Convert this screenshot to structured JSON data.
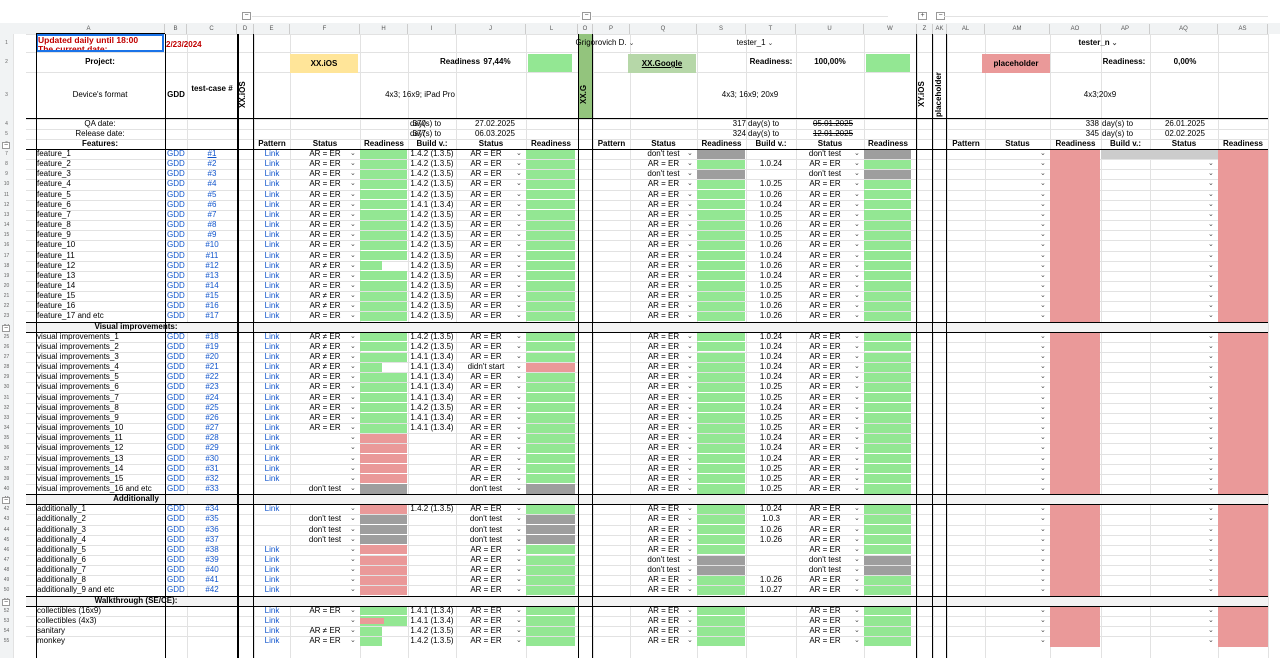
{
  "columns": [
    "A",
    "B",
    "C",
    "D",
    "E",
    "F",
    "H",
    "I",
    "J",
    "L",
    "O",
    "P",
    "Q",
    "S",
    "T",
    "U",
    "W",
    "Z",
    "AK",
    "AL",
    "AM",
    "AO",
    "AP",
    "AQ",
    "AS"
  ],
  "collapse_markers": [
    "−",
    "−",
    "+",
    "−"
  ],
  "header": {
    "updated": "Updated daily until 18:00",
    "current_date_label": "The current date:",
    "current_date": "2/23/2024",
    "project_label": "Project:",
    "device_format_label": "Device's format",
    "gdd": "GDD",
    "test_case": "test-case #",
    "qa_date_label": "QA date:",
    "release_date_label": "Release date:",
    "features_label": "Features:"
  },
  "projects": [
    {
      "tester": "Grigorovich D.",
      "name": "XX.iOS",
      "readiness_label": "Readiness:",
      "readiness": "97,44%",
      "formats": "4x3; 16x9; iPad Pro",
      "vertical": "XX.iOS",
      "qa_days": "370",
      "release_days": "377",
      "days_to": "day(s) to",
      "qa_date": "27.02.2025",
      "release_date": "06.03.2025",
      "col_headers": [
        "Pattern",
        "Status",
        "Readiness",
        "Build v.:",
        "Status",
        "Readiness"
      ],
      "name_color": "#ffe599"
    },
    {
      "tester": "tester_1",
      "name": "XX.Google",
      "readiness_label": "Readiness:",
      "readiness": "100,00%",
      "formats": "4x3; 16x9; 20x9",
      "vertical": "XX.G",
      "qa_days": "317",
      "release_days": "324",
      "days_to": "day(s) to",
      "qa_date": "05.01.2025",
      "release_date": "12.01.2025",
      "col_headers": [
        "Pattern",
        "Status",
        "Readiness",
        "Build v.:",
        "Status",
        "Readiness"
      ],
      "name_color": "#b6d7a8"
    },
    {
      "tester": "tester_n",
      "name": "placeholder",
      "readiness_label": "Readiness:",
      "readiness": "0,00%",
      "formats": "4x3;20x9",
      "vertical": "XY.iOS",
      "vertical2": "placeholder",
      "qa_days": "338",
      "release_days": "345",
      "days_to": "day(s) to",
      "qa_date": "26.01.2025",
      "release_date": "02.02.2025",
      "col_headers": [
        "Pattern",
        "Status",
        "Readiness",
        "Build v.:",
        "Status",
        "Readiness"
      ],
      "name_color": "#ea9999"
    }
  ],
  "sections": {
    "visual": "Visual improvements:",
    "additionally": "Additionally",
    "walkthrough": "Walkthrough (SE/CE):"
  },
  "rows": [
    {
      "n": 7,
      "name": "feature_1",
      "gdd": "GDD",
      "tc": "#1",
      "a": [
        "Link",
        "AR = ER",
        "g",
        "1.4.2 (1.3.5)",
        "AR = ER",
        "g"
      ],
      "b": [
        "",
        "don't test",
        "x",
        "",
        "don't test",
        "x"
      ]
    },
    {
      "n": 8,
      "name": "feature_2",
      "gdd": "GDD",
      "tc": "#2",
      "a": [
        "Link",
        "AR = ER",
        "g",
        "1.4.2 (1.3.5)",
        "AR = ER",
        "g"
      ],
      "b": [
        "",
        "AR = ER",
        "g",
        "1.0.24",
        "AR = ER",
        "g"
      ]
    },
    {
      "n": 9,
      "name": "feature_3",
      "gdd": "GDD",
      "tc": "#3",
      "a": [
        "Link",
        "AR = ER",
        "g",
        "1.4.2 (1.3.5)",
        "AR = ER",
        "g"
      ],
      "b": [
        "",
        "don't test",
        "x",
        "",
        "don't test",
        "x"
      ]
    },
    {
      "n": 10,
      "name": "feature_4",
      "gdd": "GDD",
      "tc": "#4",
      "a": [
        "Link",
        "AR = ER",
        "g",
        "1.4.2 (1.3.5)",
        "AR = ER",
        "g"
      ],
      "b": [
        "",
        "AR = ER",
        "g",
        "1.0.25",
        "AR = ER",
        "g"
      ]
    },
    {
      "n": 11,
      "name": "feature_5",
      "gdd": "GDD",
      "tc": "#5",
      "a": [
        "Link",
        "AR = ER",
        "g",
        "1.4.2 (1.3.5)",
        "AR = ER",
        "g"
      ],
      "b": [
        "",
        "AR = ER",
        "g",
        "1.0.26",
        "AR = ER",
        "g"
      ]
    },
    {
      "n": 12,
      "name": "feature_6",
      "gdd": "GDD",
      "tc": "#6",
      "a": [
        "Link",
        "AR = ER",
        "g",
        "1.4.1 (1.3.4)",
        "AR = ER",
        "g"
      ],
      "b": [
        "",
        "AR = ER",
        "g",
        "1.0.24",
        "AR = ER",
        "g"
      ]
    },
    {
      "n": 13,
      "name": "feature_7",
      "gdd": "GDD",
      "tc": "#7",
      "a": [
        "Link",
        "AR = ER",
        "g",
        "1.4.2 (1.3.5)",
        "AR = ER",
        "g"
      ],
      "b": [
        "",
        "AR = ER",
        "g",
        "1.0.25",
        "AR = ER",
        "g"
      ]
    },
    {
      "n": 14,
      "name": "feature_8",
      "gdd": "GDD",
      "tc": "#8",
      "a": [
        "Link",
        "AR = ER",
        "g",
        "1.4.2 (1.3.5)",
        "AR = ER",
        "g"
      ],
      "b": [
        "",
        "AR = ER",
        "g",
        "1.0.26",
        "AR = ER",
        "g"
      ]
    },
    {
      "n": 15,
      "name": "feature_9",
      "gdd": "GDD",
      "tc": "#9",
      "a": [
        "Link",
        "AR = ER",
        "g",
        "1.4.2 (1.3.5)",
        "AR = ER",
        "g"
      ],
      "b": [
        "",
        "AR = ER",
        "g",
        "1.0.25",
        "AR = ER",
        "g"
      ]
    },
    {
      "n": 16,
      "name": "feature_10",
      "gdd": "GDD",
      "tc": "#10",
      "a": [
        "Link",
        "AR = ER",
        "g",
        "1.4.2 (1.3.5)",
        "AR = ER",
        "g"
      ],
      "b": [
        "",
        "AR = ER",
        "g",
        "1.0.26",
        "AR = ER",
        "g"
      ]
    },
    {
      "n": 17,
      "name": "feature_11",
      "gdd": "GDD",
      "tc": "#11",
      "a": [
        "Link",
        "AR = ER",
        "g",
        "1.4.2 (1.3.5)",
        "AR = ER",
        "g"
      ],
      "b": [
        "",
        "AR = ER",
        "g",
        "1.0.24",
        "AR = ER",
        "g"
      ]
    },
    {
      "n": 18,
      "name": "feature_12",
      "gdd": "GDD",
      "tc": "#12",
      "a": [
        "Link",
        "AR ≠ ER",
        "gw",
        "1.4.2 (1.3.5)",
        "AR = ER",
        "g"
      ],
      "b": [
        "",
        "AR = ER",
        "g",
        "1.0.26",
        "AR = ER",
        "g"
      ]
    },
    {
      "n": 19,
      "name": "feature_13",
      "gdd": "GDD",
      "tc": "#13",
      "a": [
        "Link",
        "AR = ER",
        "g",
        "1.4.2 (1.3.5)",
        "AR = ER",
        "g"
      ],
      "b": [
        "",
        "AR = ER",
        "g",
        "1.0.24",
        "AR = ER",
        "g"
      ]
    },
    {
      "n": 20,
      "name": "feature_14",
      "gdd": "GDD",
      "tc": "#14",
      "a": [
        "Link",
        "AR = ER",
        "g",
        "1.4.2 (1.3.5)",
        "AR = ER",
        "g"
      ],
      "b": [
        "",
        "AR = ER",
        "g",
        "1.0.25",
        "AR = ER",
        "g"
      ]
    },
    {
      "n": 21,
      "name": "feature_15",
      "gdd": "GDD",
      "tc": "#15",
      "a": [
        "Link",
        "AR ≠ ER",
        "g",
        "1.4.2 (1.3.5)",
        "AR = ER",
        "g"
      ],
      "b": [
        "",
        "AR = ER",
        "g",
        "1.0.25",
        "AR = ER",
        "g"
      ]
    },
    {
      "n": 22,
      "name": "feature_16",
      "gdd": "GDD",
      "tc": "#16",
      "a": [
        "Link",
        "AR ≠ ER",
        "g",
        "1.4.2 (1.3.5)",
        "AR = ER",
        "g"
      ],
      "b": [
        "",
        "AR = ER",
        "g",
        "1.0.26",
        "AR = ER",
        "g"
      ]
    },
    {
      "n": 23,
      "name": "feature_17 and etc",
      "gdd": "GDD",
      "tc": "#17",
      "a": [
        "Link",
        "AR = ER",
        "g",
        "1.4.2 (1.3.5)",
        "AR = ER",
        "g"
      ],
      "b": [
        "",
        "AR = ER",
        "g",
        "1.0.26",
        "AR = ER",
        "g"
      ]
    },
    {
      "n": 24,
      "section": "visual"
    },
    {
      "n": 25,
      "name": "visual improvements_1",
      "gdd": "GDD",
      "tc": "#18",
      "a": [
        "Link",
        "AR ≠ ER",
        "g",
        "1.4.2 (1.3.5)",
        "AR = ER",
        "g"
      ],
      "b": [
        "",
        "AR = ER",
        "g",
        "1.0.24",
        "AR = ER",
        "g"
      ]
    },
    {
      "n": 26,
      "name": "visual improvements_2",
      "gdd": "GDD",
      "tc": "#19",
      "a": [
        "Link",
        "AR ≠ ER",
        "g",
        "1.4.2 (1.3.5)",
        "AR = ER",
        "g"
      ],
      "b": [
        "",
        "AR = ER",
        "g",
        "1.0.24",
        "AR = ER",
        "g"
      ]
    },
    {
      "n": 27,
      "name": "visual improvements_3",
      "gdd": "GDD",
      "tc": "#20",
      "a": [
        "Link",
        "AR ≠ ER",
        "g",
        "1.4.1 (1.3.4)",
        "AR = ER",
        "g"
      ],
      "b": [
        "",
        "AR = ER",
        "g",
        "1.0.24",
        "AR = ER",
        "g"
      ]
    },
    {
      "n": 28,
      "name": "visual improvements_4",
      "gdd": "GDD",
      "tc": "#21",
      "a": [
        "Link",
        "AR ≠ ER",
        "gw",
        "1.4.1 (1.3.4)",
        "didn't start",
        "r"
      ],
      "b": [
        "",
        "AR = ER",
        "g",
        "1.0.24",
        "AR = ER",
        "g"
      ]
    },
    {
      "n": 29,
      "name": "visual improvements_5",
      "gdd": "GDD",
      "tc": "#22",
      "a": [
        "Link",
        "AR = ER",
        "g",
        "1.4.1 (1.3.4)",
        "AR = ER",
        "g"
      ],
      "b": [
        "",
        "AR = ER",
        "g",
        "1.0.24",
        "AR = ER",
        "g"
      ]
    },
    {
      "n": 30,
      "name": "visual improvements_6",
      "gdd": "GDD",
      "tc": "#23",
      "a": [
        "Link",
        "AR = ER",
        "g",
        "1.4.1 (1.3.4)",
        "AR = ER",
        "g"
      ],
      "b": [
        "",
        "AR = ER",
        "g",
        "1.0.25",
        "AR = ER",
        "g"
      ]
    },
    {
      "n": 31,
      "name": "visual improvements_7",
      "gdd": "GDD",
      "tc": "#24",
      "a": [
        "Link",
        "AR = ER",
        "g",
        "1.4.1 (1.3.4)",
        "AR = ER",
        "g"
      ],
      "b": [
        "",
        "AR = ER",
        "g",
        "1.0.25",
        "AR = ER",
        "g"
      ]
    },
    {
      "n": 32,
      "name": "visual improvements_8",
      "gdd": "GDD",
      "tc": "#25",
      "a": [
        "Link",
        "AR = ER",
        "g",
        "1.4.2 (1.3.5)",
        "AR = ER",
        "g"
      ],
      "b": [
        "",
        "AR = ER",
        "g",
        "1.0.24",
        "AR = ER",
        "g"
      ]
    },
    {
      "n": 33,
      "name": "visual improvements_9",
      "gdd": "GDD",
      "tc": "#26",
      "a": [
        "Link",
        "AR = ER",
        "g",
        "1.4.1 (1.3.4)",
        "AR = ER",
        "g"
      ],
      "b": [
        "",
        "AR = ER",
        "g",
        "1.0.25",
        "AR = ER",
        "g"
      ]
    },
    {
      "n": 34,
      "name": "visual improvements_10",
      "gdd": "GDD",
      "tc": "#27",
      "a": [
        "Link",
        "AR = ER",
        "g",
        "1.4.1 (1.3.4)",
        "AR = ER",
        "g"
      ],
      "b": [
        "",
        "AR = ER",
        "g",
        "1.0.25",
        "AR = ER",
        "g"
      ]
    },
    {
      "n": 35,
      "name": "visual improvements_11",
      "gdd": "GDD",
      "tc": "#28",
      "a": [
        "Link",
        "",
        "r",
        "",
        "AR = ER",
        "g"
      ],
      "b": [
        "",
        "AR = ER",
        "g",
        "1.0.24",
        "AR = ER",
        "g"
      ]
    },
    {
      "n": 36,
      "name": "visual improvements_12",
      "gdd": "GDD",
      "tc": "#29",
      "a": [
        "Link",
        "",
        "r",
        "",
        "AR = ER",
        "g"
      ],
      "b": [
        "",
        "AR = ER",
        "g",
        "1.0.24",
        "AR = ER",
        "g"
      ]
    },
    {
      "n": 37,
      "name": "visual improvements_13",
      "gdd": "GDD",
      "tc": "#30",
      "a": [
        "Link",
        "",
        "r",
        "",
        "AR = ER",
        "g"
      ],
      "b": [
        "",
        "AR = ER",
        "g",
        "1.0.24",
        "AR = ER",
        "g"
      ]
    },
    {
      "n": 38,
      "name": "visual improvements_14",
      "gdd": "GDD",
      "tc": "#31",
      "a": [
        "Link",
        "",
        "r",
        "",
        "AR = ER",
        "g"
      ],
      "b": [
        "",
        "AR = ER",
        "g",
        "1.0.25",
        "AR = ER",
        "g"
      ]
    },
    {
      "n": 39,
      "name": "visual improvements_15",
      "gdd": "GDD",
      "tc": "#32",
      "a": [
        "Link",
        "",
        "r",
        "",
        "AR = ER",
        "g"
      ],
      "b": [
        "",
        "AR = ER",
        "g",
        "1.0.25",
        "AR = ER",
        "g"
      ]
    },
    {
      "n": 40,
      "name": "visual improvements_16 and etc",
      "gdd": "GDD",
      "tc": "#33",
      "a": [
        "",
        "don't test",
        "x",
        "",
        "don't test",
        "x"
      ],
      "b": [
        "",
        "AR = ER",
        "g",
        "1.0.25",
        "AR = ER",
        "g"
      ]
    },
    {
      "n": 41,
      "section": "additionally"
    },
    {
      "n": 42,
      "name": "additionally_1",
      "gdd": "GDD",
      "tc": "#34",
      "a": [
        "Link",
        "",
        "r",
        "1.4.2 (1.3.5)",
        "AR = ER",
        "g"
      ],
      "b": [
        "",
        "AR = ER",
        "g",
        "1.0.24",
        "AR = ER",
        "g"
      ]
    },
    {
      "n": 43,
      "name": "additionally_2",
      "gdd": "GDD",
      "tc": "#35",
      "a": [
        "",
        "don't test",
        "x",
        "",
        "don't test",
        "x"
      ],
      "b": [
        "",
        "AR = ER",
        "g",
        "1.0.3",
        "AR = ER",
        "g"
      ]
    },
    {
      "n": 44,
      "name": "additionally_3",
      "gdd": "GDD",
      "tc": "#36",
      "a": [
        "",
        "don't test",
        "x",
        "",
        "don't test",
        "x"
      ],
      "b": [
        "",
        "AR = ER",
        "g",
        "1.0.26",
        "AR = ER",
        "g"
      ]
    },
    {
      "n": 45,
      "name": "additionally_4",
      "gdd": "GDD",
      "tc": "#37",
      "a": [
        "",
        "don't test",
        "x",
        "",
        "don't test",
        "x"
      ],
      "b": [
        "",
        "AR = ER",
        "g",
        "1.0.26",
        "AR = ER",
        "g"
      ]
    },
    {
      "n": 46,
      "name": "additionally_5",
      "gdd": "GDD",
      "tc": "#38",
      "a": [
        "Link",
        "",
        "r",
        "",
        "AR = ER",
        "g"
      ],
      "b": [
        "",
        "AR = ER",
        "g",
        "",
        "AR = ER",
        "g"
      ]
    },
    {
      "n": 47,
      "name": "additionally_6",
      "gdd": "GDD",
      "tc": "#39",
      "a": [
        "Link",
        "",
        "r",
        "",
        "AR = ER",
        "g"
      ],
      "b": [
        "",
        "don't test",
        "x",
        "",
        "don't test",
        "x"
      ]
    },
    {
      "n": 48,
      "name": "additionally_7",
      "gdd": "GDD",
      "tc": "#40",
      "a": [
        "Link",
        "",
        "r",
        "",
        "AR = ER",
        "g"
      ],
      "b": [
        "",
        "don't test",
        "x",
        "",
        "don't test",
        "x"
      ]
    },
    {
      "n": 49,
      "name": "additionally_8",
      "gdd": "GDD",
      "tc": "#41",
      "a": [
        "Link",
        "",
        "r",
        "",
        "AR = ER",
        "g"
      ],
      "b": [
        "",
        "AR = ER",
        "g",
        "1.0.26",
        "AR = ER",
        "g"
      ]
    },
    {
      "n": 50,
      "name": "additionally_9 and etc",
      "gdd": "GDD",
      "tc": "#42",
      "a": [
        "Link",
        "",
        "r",
        "",
        "AR = ER",
        "g"
      ],
      "b": [
        "",
        "AR = ER",
        "g",
        "1.0.27",
        "AR = ER",
        "g"
      ]
    },
    {
      "n": 51,
      "section": "walkthrough"
    },
    {
      "n": 52,
      "name": "collectibles (16x9)",
      "gdd": "",
      "tc": "",
      "a": [
        "Link",
        "AR = ER",
        "g",
        "1.4.1 (1.3.4)",
        "AR = ER",
        "g"
      ],
      "b": [
        "",
        "AR = ER",
        "g",
        "",
        "AR = ER",
        "g"
      ]
    },
    {
      "n": 53,
      "name": "collectibles (4x3)",
      "gdd": "",
      "tc": "",
      "a": [
        "Link",
        "",
        "rg",
        "1.4.1 (1.3.4)",
        "AR = ER",
        "g"
      ],
      "b": [
        "",
        "AR = ER",
        "g",
        "",
        "AR = ER",
        "g"
      ]
    },
    {
      "n": 54,
      "name": "sanitary",
      "gdd": "",
      "tc": "",
      "a": [
        "Link",
        "AR ≠ ER",
        "gw",
        "1.4.2 (1.3.5)",
        "AR = ER",
        "g"
      ],
      "b": [
        "",
        "AR = ER",
        "g",
        "",
        "AR = ER",
        "g"
      ]
    },
    {
      "n": 55,
      "name": "monkey",
      "gdd": "",
      "tc": "",
      "a": [
        "Link",
        "AR = ER",
        "gw",
        "1.4.2 (1.3.5)",
        "AR = ER",
        "g"
      ],
      "b": [
        "",
        "AR = ER",
        "g",
        "",
        "AR = ER",
        "g"
      ]
    }
  ],
  "colors": {
    "green": "#93e793",
    "red": "#ea9999",
    "gray": "#9e9e9e",
    "header_bg": "#f1f3f4",
    "link": "#1155cc"
  },
  "dropdown_glyph": "⌄"
}
